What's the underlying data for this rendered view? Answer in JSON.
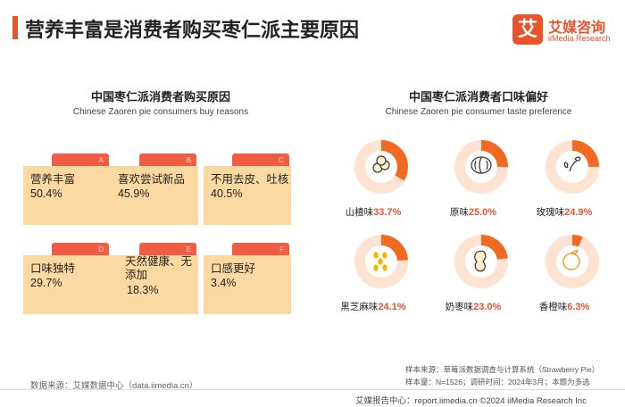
{
  "header": {
    "title": "营养丰富是消费者购买枣仁派主要原因",
    "logo_mark": "艾",
    "logo_cn": "艾媒咨询",
    "logo_en": "iiMedia Research"
  },
  "left_section": {
    "title": "中国枣仁派消费者购买原因",
    "subtitle": "Chinese Zaoren pie consumers buy reasons"
  },
  "right_section": {
    "title": "中国枣仁派消费者口味偏好",
    "subtitle": "Chinese Zaoren pie consumer taste preference"
  },
  "chart_data": [
    {
      "type": "table",
      "title": "中国枣仁派消费者购买原因",
      "subtitle": "Chinese Zaoren pie consumers buy reasons",
      "items": [
        {
          "letter": "A",
          "name": "营养丰富",
          "value_label": "50.4%",
          "value": 50.4
        },
        {
          "letter": "B",
          "name": "喜欢尝试新品",
          "value_label": "45.9%",
          "value": 45.9
        },
        {
          "letter": "C",
          "name": "不用去皮、吐核",
          "value_label": "40.5%",
          "value": 40.5
        },
        {
          "letter": "D",
          "name": "口味独特",
          "value_label": "29.7%",
          "value": 29.7
        },
        {
          "letter": "E",
          "name": "天然健康、无添加",
          "value_label": "18.3%",
          "value": 18.3
        },
        {
          "letter": "F",
          "name": "口感更好",
          "value_label": "3.4%",
          "value": 3.4
        }
      ]
    },
    {
      "type": "pie",
      "title": "中国枣仁派消费者口味偏好",
      "subtitle": "Chinese Zaoren pie consumer taste preference",
      "items": [
        {
          "name": "山楂味",
          "value_label": "33.7%",
          "value": 33.7,
          "icon": "hawthorn-icon"
        },
        {
          "name": "原味",
          "value_label": "25.0%",
          "value": 25.0,
          "icon": "walnut-icon"
        },
        {
          "name": "玫瑰味",
          "value_label": "24.9%",
          "value": 24.9,
          "icon": "rose-icon"
        },
        {
          "name": "黑芝麻味",
          "value_label": "24.1%",
          "value": 24.1,
          "icon": "sesame-icon"
        },
        {
          "name": "奶枣味",
          "value_label": "23.0%",
          "value": 23.0,
          "icon": "peanut-icon"
        },
        {
          "name": "香橙味",
          "value_label": "6.3%",
          "value": 6.3,
          "icon": "orange-icon"
        }
      ],
      "colors": {
        "filled": "#f26a22",
        "track": "#fde3d2"
      }
    }
  ],
  "footer": {
    "source_left": "数据来源：艾媒数据中心（data.iimedia.cn）",
    "source_right": "样本来源：草莓派数据调查与计算系统（Strawberry Pie）",
    "sample_info": "样本量：N=1526；调研时间：2024年3月；本题为多选",
    "copyright": "艾媒报告中心：report.iimedia.cn   ©2024  iiMedia Research Inc"
  }
}
